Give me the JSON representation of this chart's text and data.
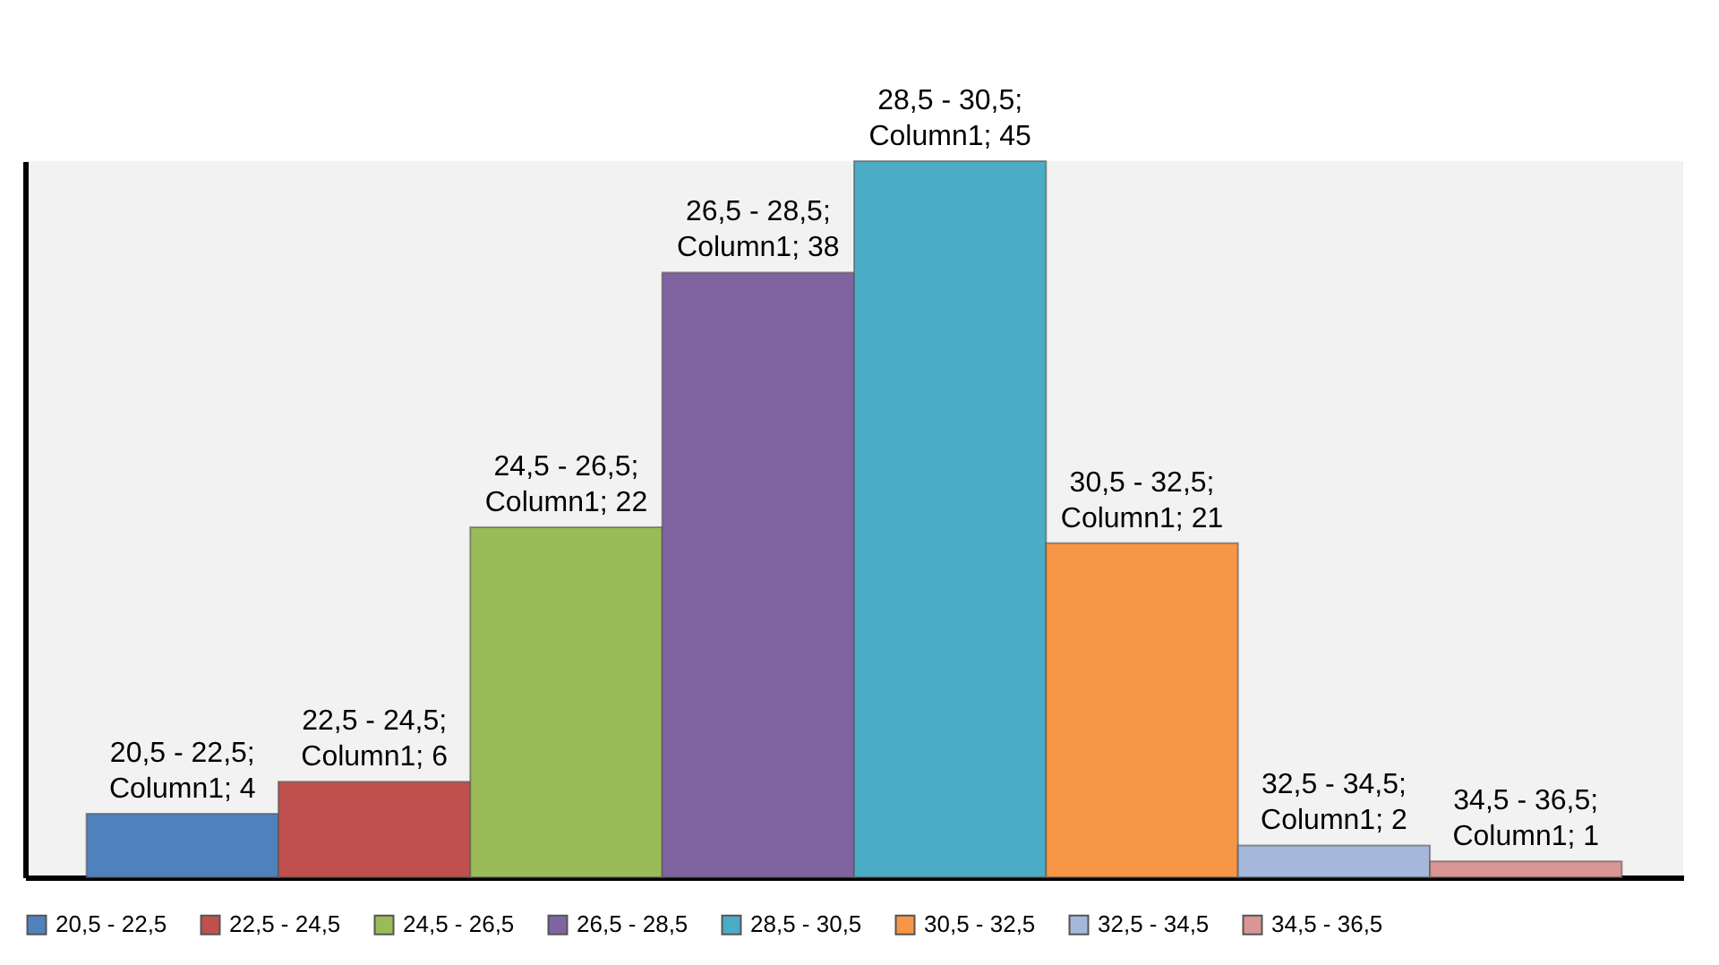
{
  "chart_data": {
    "type": "bar",
    "categories": [
      null
    ],
    "series": [
      {
        "name": "20,5 - 22,5",
        "color": "#4f81bd",
        "values": [
          4
        ],
        "value_labels": [
          "20,5 - 22,5; Column1; 4"
        ]
      },
      {
        "name": "22,5 - 24,5",
        "color": "#c0504d",
        "values": [
          6
        ],
        "value_labels": [
          "22,5 - 24,5; Column1; 6"
        ]
      },
      {
        "name": "24,5 - 26,5",
        "color": "#9bbb59",
        "values": [
          22
        ],
        "value_labels": [
          "24,5 - 26,5; Column1; 22"
        ]
      },
      {
        "name": "26,5 - 28,5",
        "color": "#8064a2",
        "values": [
          38
        ],
        "value_labels": [
          "26,5 - 28,5; Column1; 38"
        ]
      },
      {
        "name": "28,5 - 30,5",
        "color": "#4bacc6",
        "values": [
          45
        ],
        "value_labels": [
          "28,5 - 30,5; Column1; 45"
        ]
      },
      {
        "name": "30,5 - 32,5",
        "color": "#f79646",
        "values": [
          21
        ],
        "value_labels": [
          "30,5 - 32,5; Column1; 21"
        ]
      },
      {
        "name": "32,5 - 34,5",
        "color": "#a5b8db",
        "values": [
          2
        ],
        "value_labels": [
          "32,5 - 34,5; Column1; 2"
        ]
      },
      {
        "name": "34,5 - 36,5",
        "color": "#d99694",
        "values": [
          1
        ],
        "value_labels": [
          "34,5 - 36,5; Column1; 1"
        ]
      }
    ],
    "legend": "bottom"
  }
}
